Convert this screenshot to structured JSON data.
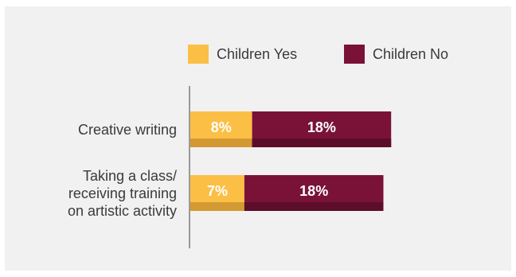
{
  "chart_data": {
    "type": "bar",
    "orientation": "horizontal",
    "stacked": true,
    "categories": [
      "Creative writing",
      "Taking a class/\nreceiving training\non artistic activity"
    ],
    "series": [
      {
        "name": "Children Yes",
        "values": [
          8,
          7
        ],
        "color": "#fbbf45",
        "shade": "#d39a33"
      },
      {
        "name": "Children No",
        "values": [
          18,
          18
        ],
        "color": "#7a1238",
        "shade": "#5c0d2a"
      }
    ],
    "data_labels": [
      [
        "8%",
        "7%"
      ],
      [
        "18%",
        "18%"
      ]
    ],
    "legend": "top",
    "grid": false,
    "xlim": [
      0,
      33
    ]
  }
}
